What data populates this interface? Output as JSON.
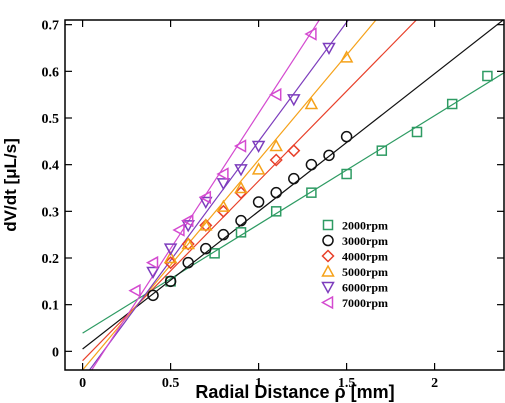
{
  "chart_data": {
    "type": "scatter",
    "title": "",
    "xlabel": "Radial Distance  ρ  [mm]",
    "ylabel": "dV/dt [μL/s]",
    "xlim": [
      -0.1,
      2.4
    ],
    "ylim": [
      -0.04,
      0.71
    ],
    "x_ticks": [
      0,
      0.5,
      1,
      1.5,
      2
    ],
    "x_tick_labels": [
      "0",
      "0.5",
      "1",
      "1.5",
      "2"
    ],
    "y_ticks": [
      0,
      0.1,
      0.2,
      0.3,
      0.4,
      0.5,
      0.6,
      0.7
    ],
    "y_tick_labels": [
      "0",
      "0.1",
      "0.2",
      "0.3",
      "0.4",
      "0.5",
      "0.6",
      "0.7"
    ],
    "grid": false,
    "legend_position": "lower-right",
    "series": [
      {
        "name": "2000rpm",
        "marker": "square",
        "color": "#2e9b63",
        "x": [
          0.5,
          0.75,
          0.9,
          1.1,
          1.3,
          1.5,
          1.7,
          1.9,
          2.1,
          2.3
        ],
        "y": [
          0.15,
          0.21,
          0.255,
          0.3,
          0.34,
          0.38,
          0.43,
          0.47,
          0.53,
          0.59
        ],
        "fit": [
          0.039,
          0.233
        ]
      },
      {
        "name": "3000rpm",
        "marker": "circle",
        "color": "#111111",
        "x": [
          0.4,
          0.5,
          0.6,
          0.7,
          0.8,
          0.9,
          1.0,
          1.1,
          1.2,
          1.3,
          1.4,
          1.5
        ],
        "y": [
          0.12,
          0.15,
          0.19,
          0.22,
          0.25,
          0.28,
          0.32,
          0.34,
          0.37,
          0.4,
          0.42,
          0.46
        ],
        "fit": [
          0.005,
          0.295
        ]
      },
      {
        "name": "4000rpm",
        "marker": "diamond",
        "color": "#e8402a",
        "x": [
          0.5,
          0.6,
          0.7,
          0.8,
          0.9,
          1.1,
          1.2
        ],
        "y": [
          0.19,
          0.23,
          0.27,
          0.3,
          0.34,
          0.41,
          0.43
        ],
        "fit": [
          -0.02,
          0.385
        ]
      },
      {
        "name": "5000rpm",
        "marker": "triangle-up",
        "color": "#f5a21a",
        "x": [
          0.5,
          0.6,
          0.7,
          0.8,
          0.9,
          1.0,
          1.1,
          1.3,
          1.5
        ],
        "y": [
          0.2,
          0.23,
          0.27,
          0.31,
          0.35,
          0.39,
          0.44,
          0.53,
          0.63
        ],
        "fit": [
          -0.04,
          0.45
        ]
      },
      {
        "name": "6000rpm",
        "marker": "triangle-down",
        "color": "#7d3dbd",
        "x": [
          0.4,
          0.5,
          0.6,
          0.7,
          0.8,
          0.9,
          1.0,
          1.2,
          1.4
        ],
        "y": [
          0.17,
          0.22,
          0.27,
          0.32,
          0.36,
          0.39,
          0.44,
          0.54,
          0.65
        ],
        "fit": [
          -0.06,
          0.51
        ]
      },
      {
        "name": "7000rpm",
        "marker": "triangle-left",
        "color": "#d44ad0",
        "x": [
          0.3,
          0.4,
          0.55,
          0.6,
          0.7,
          0.8,
          0.9,
          1.1,
          1.3
        ],
        "y": [
          0.13,
          0.19,
          0.26,
          0.28,
          0.33,
          0.38,
          0.44,
          0.55,
          0.68
        ],
        "fit": [
          -0.07,
          0.58
        ]
      }
    ]
  }
}
